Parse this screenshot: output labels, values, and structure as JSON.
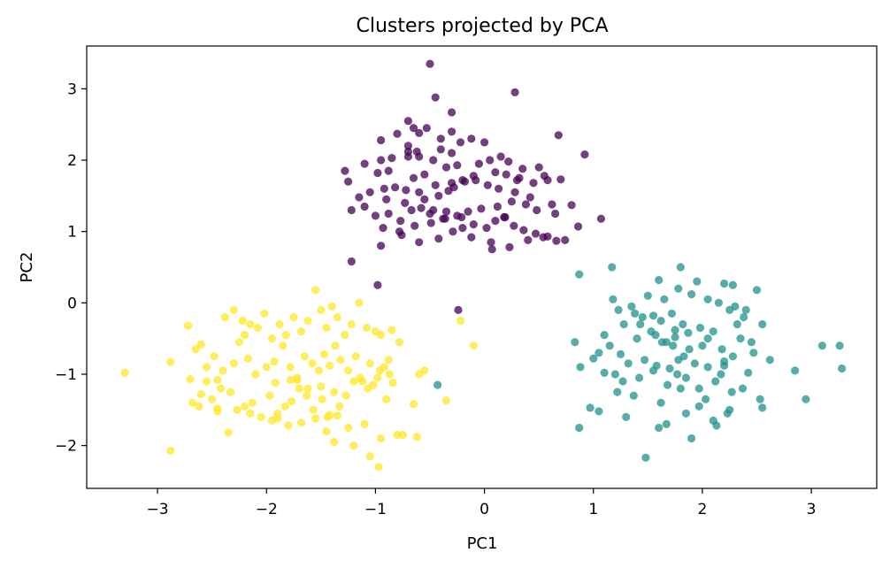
{
  "chart_data": {
    "type": "scatter",
    "title": "Clusters projected by PCA",
    "xlabel": "PC1",
    "ylabel": "PC2",
    "xlim": [
      -3.65,
      3.6
    ],
    "ylim": [
      -2.6,
      3.6
    ],
    "xticks": [
      -3,
      -2,
      -1,
      0,
      1,
      2,
      3
    ],
    "yticks": [
      -2,
      -1,
      0,
      1,
      2,
      3
    ],
    "xtick_labels": [
      "−3",
      "−2",
      "−1",
      "0",
      "1",
      "2",
      "3"
    ],
    "ytick_labels": [
      "−2",
      "−1",
      "0",
      "1",
      "2",
      "3"
    ],
    "grid": false,
    "legend": false,
    "colors": {
      "cluster_0": "#440154",
      "cluster_1": "#21918c",
      "cluster_2": "#fde725"
    },
    "point_alpha": 0.75,
    "series": [
      {
        "color": "#440154",
        "x": [
          -0.5,
          0.28,
          -0.45,
          -0.3,
          -0.7,
          -0.65,
          -0.53,
          -0.3,
          -0.6,
          -0.8,
          -0.4,
          -0.95,
          -0.7,
          -0.4,
          -0.6,
          -0.47,
          -0.3,
          -0.22,
          -0.12,
          0.0,
          -0.62,
          -0.7,
          -0.85,
          -0.95,
          -1.1,
          -1.28,
          -1.25,
          -0.98,
          -0.88,
          -0.65,
          -0.55,
          -0.35,
          -0.25,
          -0.05,
          0.05,
          0.15,
          0.22,
          0.35,
          0.5,
          0.68,
          0.92,
          0.7,
          0.55,
          0.45,
          0.3,
          0.2,
          0.1,
          -0.1,
          -0.2,
          -0.3,
          -0.45,
          -0.6,
          -0.72,
          -0.82,
          -0.92,
          -1.05,
          -1.15,
          -0.9,
          -0.73,
          -0.55,
          -0.42,
          -0.33,
          -0.28,
          -0.18,
          -0.08,
          0.03,
          0.13,
          0.28,
          0.42,
          0.58,
          0.62,
          0.8,
          0.65,
          0.48,
          0.38,
          0.25,
          0.12,
          -0.03,
          -0.15,
          -0.25,
          -0.38,
          -0.5,
          -0.58,
          -0.67,
          -0.77,
          -0.88,
          -1.0,
          -1.1,
          -1.22,
          -0.93,
          -0.78,
          -0.64,
          -0.49,
          -0.36,
          -0.21,
          -0.1,
          0.02,
          0.1,
          0.19,
          0.27,
          0.36,
          0.47,
          0.54,
          0.66,
          0.74,
          0.86,
          1.07,
          0.58,
          0.4,
          0.23,
          0.06,
          -0.12,
          -0.29,
          -0.42,
          -0.6,
          -0.76,
          -0.95,
          -1.22,
          -0.98,
          -0.24,
          -0.7,
          -0.47,
          -0.35,
          -0.2,
          0.07,
          0.18,
          0.32
        ],
        "y": [
          3.35,
          2.95,
          2.88,
          2.67,
          2.55,
          2.45,
          2.45,
          2.4,
          2.38,
          2.37,
          2.3,
          2.28,
          2.2,
          2.15,
          2.05,
          2.0,
          2.1,
          2.25,
          2.3,
          2.25,
          2.12,
          2.05,
          2.03,
          2.0,
          1.95,
          1.85,
          1.7,
          1.82,
          1.85,
          1.75,
          1.8,
          1.9,
          1.93,
          1.95,
          2.0,
          2.05,
          1.98,
          1.88,
          1.9,
          2.35,
          2.08,
          1.73,
          1.78,
          1.68,
          1.72,
          1.8,
          1.83,
          1.78,
          1.72,
          1.68,
          1.65,
          1.55,
          1.58,
          1.62,
          1.6,
          1.55,
          1.48,
          1.45,
          1.4,
          1.45,
          1.5,
          1.57,
          1.62,
          1.7,
          1.72,
          1.65,
          1.6,
          1.55,
          1.48,
          1.72,
          1.38,
          1.37,
          1.25,
          1.3,
          1.38,
          1.42,
          1.35,
          1.32,
          1.28,
          1.22,
          1.18,
          1.25,
          1.33,
          1.3,
          1.15,
          1.25,
          1.22,
          1.35,
          1.3,
          1.05,
          1.0,
          1.08,
          1.12,
          1.18,
          1.2,
          1.1,
          1.05,
          1.15,
          1.2,
          1.08,
          1.02,
          0.97,
          0.92,
          0.87,
          0.88,
          1.07,
          1.18,
          0.93,
          0.88,
          0.78,
          0.85,
          0.92,
          1.0,
          0.9,
          0.85,
          0.95,
          0.8,
          0.58,
          0.25,
          -0.1,
          2.12,
          1.3,
          1.28,
          1.05,
          0.75,
          1.2,
          1.75
        ],
        "name": ""
      },
      {
        "color": "#21918c",
        "x": [
          1.17,
          0.87,
          1.8,
          1.6,
          1.95,
          2.2,
          2.28,
          2.5,
          1.18,
          1.23,
          1.35,
          1.5,
          1.65,
          1.78,
          1.9,
          2.05,
          2.15,
          2.3,
          2.4,
          0.83,
          1.1,
          1.28,
          1.38,
          1.45,
          1.55,
          1.62,
          1.72,
          1.82,
          1.98,
          2.1,
          2.25,
          2.38,
          2.55,
          2.62,
          3.1,
          3.26,
          3.28,
          2.85,
          2.95,
          1.05,
          1.15,
          1.25,
          1.4,
          1.53,
          1.67,
          1.75,
          1.87,
          2.0,
          2.18,
          2.35,
          2.45,
          0.88,
          1.0,
          1.2,
          1.32,
          1.47,
          1.58,
          1.7,
          1.83,
          1.93,
          2.05,
          2.2,
          2.42,
          1.1,
          1.27,
          1.42,
          1.55,
          1.68,
          1.77,
          1.85,
          1.97,
          2.12,
          2.27,
          2.53,
          0.97,
          1.22,
          1.37,
          1.62,
          1.8,
          2.03,
          2.23,
          2.37,
          2.55,
          0.87,
          1.05,
          1.3,
          1.6,
          1.85,
          2.1,
          2.25,
          1.67,
          1.97,
          2.17,
          2.32,
          2.05,
          1.88,
          1.73,
          1.57,
          1.43,
          2.28,
          2.47,
          1.75,
          1.63,
          1.9,
          2.13,
          2.2,
          1.78,
          1.48,
          -0.43
        ],
        "y": [
          0.5,
          0.4,
          0.5,
          0.32,
          0.3,
          0.27,
          0.25,
          0.18,
          0.05,
          -0.1,
          -0.05,
          0.1,
          0.05,
          0.2,
          0.12,
          0.05,
          0.0,
          -0.05,
          -0.1,
          -0.55,
          -0.45,
          -0.3,
          -0.15,
          -0.2,
          -0.18,
          -0.25,
          -0.15,
          -0.3,
          -0.35,
          -0.4,
          -0.1,
          -0.2,
          -0.3,
          -0.8,
          -0.6,
          -0.6,
          -0.92,
          -0.95,
          -1.35,
          -0.7,
          -0.6,
          -0.72,
          -0.5,
          -0.4,
          -0.55,
          -0.48,
          -0.42,
          -0.6,
          -0.65,
          -0.5,
          -0.55,
          -0.9,
          -0.78,
          -1.0,
          -0.85,
          -0.8,
          -0.88,
          -0.92,
          -0.75,
          -0.85,
          -0.9,
          -0.82,
          -0.98,
          -0.98,
          -1.1,
          -1.05,
          -0.95,
          -1.15,
          -1.0,
          -1.05,
          -1.2,
          -1.1,
          -1.25,
          -1.35,
          -1.47,
          -1.25,
          -1.3,
          -1.4,
          -1.2,
          -1.35,
          -1.55,
          -1.2,
          -1.47,
          -1.75,
          -1.52,
          -1.6,
          -1.75,
          -1.55,
          -1.65,
          -1.5,
          -1.7,
          -1.45,
          -1.0,
          -0.3,
          -0.5,
          -0.65,
          -0.6,
          -0.45,
          -0.3,
          -0.75,
          -0.7,
          -0.38,
          -0.55,
          -1.9,
          -1.72,
          -0.88,
          -0.8,
          -2.17,
          -1.15
        ],
        "name": ""
      },
      {
        "color": "#fde725",
        "x": [
          -3.3,
          -2.88,
          -2.72,
          -2.65,
          -2.6,
          -2.55,
          -2.45,
          -2.38,
          -2.3,
          -2.2,
          -2.22,
          -2.15,
          -2.08,
          -2.02,
          -1.95,
          -1.88,
          -1.82,
          -1.75,
          -1.68,
          -1.62,
          -1.55,
          -1.5,
          -1.45,
          -1.4,
          -1.35,
          -1.28,
          -1.22,
          -1.15,
          -1.08,
          -1.0,
          -0.95,
          -0.88,
          -0.85,
          -0.78,
          -0.6,
          -0.55,
          -0.22,
          -0.1,
          -2.7,
          -2.62,
          -2.55,
          -2.48,
          -2.4,
          -2.3,
          -2.25,
          -2.17,
          -2.1,
          -2.0,
          -1.93,
          -1.85,
          -1.78,
          -1.72,
          -1.65,
          -1.58,
          -1.52,
          -1.47,
          -1.42,
          -1.37,
          -1.32,
          -1.25,
          -1.18,
          -1.12,
          -1.05,
          -0.98,
          -0.92,
          -0.87,
          -2.68,
          -2.6,
          -2.5,
          -2.42,
          -2.33,
          -2.27,
          -2.2,
          -2.13,
          -2.05,
          -1.97,
          -1.9,
          -1.83,
          -1.77,
          -1.7,
          -1.63,
          -1.57,
          -1.49,
          -1.44,
          -1.38,
          -1.33,
          -1.27,
          -1.2,
          -1.14,
          -1.07,
          -1.02,
          -0.96,
          -0.9,
          -0.84,
          -0.8,
          -0.62,
          -0.35,
          -2.45,
          -2.35,
          -2.15,
          -1.95,
          -1.8,
          -1.68,
          -1.55,
          -1.45,
          -1.35,
          -1.25,
          -1.1,
          -0.95,
          -0.75,
          -0.65,
          -2.88,
          -2.45,
          -1.9,
          -1.72,
          -1.5,
          -1.38,
          -1.2,
          -1.05,
          -0.97,
          -1.62,
          -1.78,
          -1.92,
          -1.42
        ],
        "y": [
          -0.98,
          -0.83,
          -0.32,
          -0.65,
          -0.58,
          -0.9,
          -1.08,
          -0.2,
          -0.1,
          -0.45,
          -0.25,
          -0.3,
          -0.35,
          -0.15,
          -0.5,
          -0.3,
          -0.45,
          -0.2,
          -0.4,
          -0.25,
          0.18,
          -0.1,
          -0.35,
          -0.05,
          -0.2,
          -0.45,
          -0.3,
          0.0,
          -0.35,
          -0.4,
          -0.45,
          -0.8,
          -0.38,
          -0.55,
          -1.0,
          -0.95,
          -0.25,
          -0.6,
          -1.07,
          -1.45,
          -1.1,
          -0.75,
          -0.95,
          -0.85,
          -0.55,
          -0.78,
          -1.0,
          -0.9,
          -0.82,
          -0.6,
          -0.9,
          -1.05,
          -0.75,
          -0.85,
          -0.95,
          -0.72,
          -0.88,
          -0.6,
          -0.8,
          -0.95,
          -0.75,
          -1.1,
          -0.85,
          -1.05,
          -0.9,
          -1.0,
          -1.4,
          -1.28,
          -1.35,
          -1.2,
          -1.25,
          -1.5,
          -1.45,
          -1.4,
          -1.6,
          -1.3,
          -1.55,
          -1.45,
          -1.38,
          -1.2,
          -1.3,
          -1.5,
          -1.35,
          -1.6,
          -1.25,
          -1.45,
          -1.3,
          -1.1,
          -1.05,
          -1.2,
          -1.15,
          -0.95,
          -1.35,
          -1.12,
          -1.85,
          -1.88,
          -1.37,
          -1.48,
          -1.82,
          -1.55,
          -1.65,
          -1.72,
          -1.68,
          -1.62,
          -1.8,
          -1.58,
          -1.75,
          -1.7,
          -1.9,
          -1.85,
          -1.42,
          -2.07,
          -1.52,
          -1.62,
          -1.08,
          -1.17,
          -1.95,
          -2.0,
          -2.15,
          -2.3,
          -1.2,
          -1.08,
          -1.12,
          -1.57
        ],
        "name": ""
      }
    ]
  }
}
